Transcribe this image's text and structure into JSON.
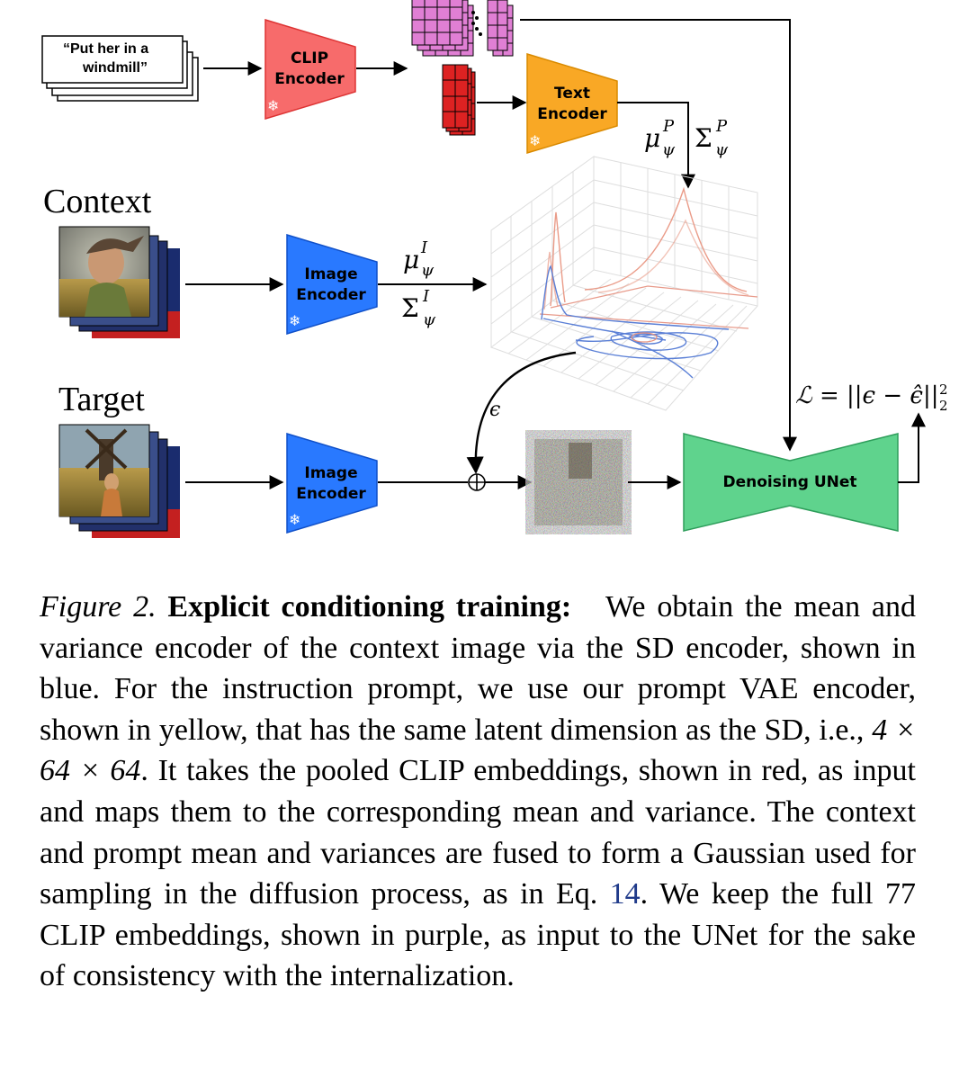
{
  "diagram": {
    "prompt_text_line1": "“Put her in a",
    "prompt_text_line2": "windmill”",
    "clip_encoder_line1": "CLIP",
    "clip_encoder_line2": "Encoder",
    "text_encoder_line1": "Text",
    "text_encoder_line2": "Encoder",
    "image_encoder_line1": "Image",
    "image_encoder_line2": "Encoder",
    "context_label": "Context",
    "target_label": "Target",
    "unet_label": "Denoising UNet",
    "mu_prompt": "μ",
    "sigma_prompt": "Σ",
    "mu_image": "μ",
    "sigma_image": "Σ",
    "sub_psi": "ψ",
    "sup_P": "P",
    "sup_I": "I",
    "epsilon": "ϵ",
    "loss": "ℒ = ||ϵ − ϵ̂||",
    "loss_sub": "2",
    "loss_sup": "2",
    "frozen_icon_glyph": "❄"
  },
  "colors": {
    "clip_encoder": "#f76b6b",
    "text_encoder": "#f9a825",
    "image_encoder": "#2979ff",
    "unet": "#5fd38d",
    "purple_embed": "#e07fd4",
    "red_embed": "#dd2222",
    "gaussian_prompt": "#e8917c",
    "gaussian_image": "#5a7fd6"
  },
  "caption": {
    "fig_label": "Figure 2.",
    "fig_title": "Explicit conditioning training:",
    "text_part1": "We obtain the mean and variance encoder of the context image via the SD encoder, shown in blue. For the instruction prompt, we use our prompt VAE encoder, shown in yellow, that has the same latent dimension as the SD, i.e., ",
    "math_dims": "4 × 64 × 64",
    "text_part2": ". It takes the pooled CLIP embeddings, shown in red, as input and maps them to the corresponding mean and variance. The context and prompt mean and variances are fused to form a Gaussian used for sampling in the diffusion process, as in Eq. ",
    "eq_ref": "14",
    "text_part3": ". We keep the full 77 CLIP embeddings, shown in purple, as input to the UNet for the sake of consistency with the internalization."
  }
}
